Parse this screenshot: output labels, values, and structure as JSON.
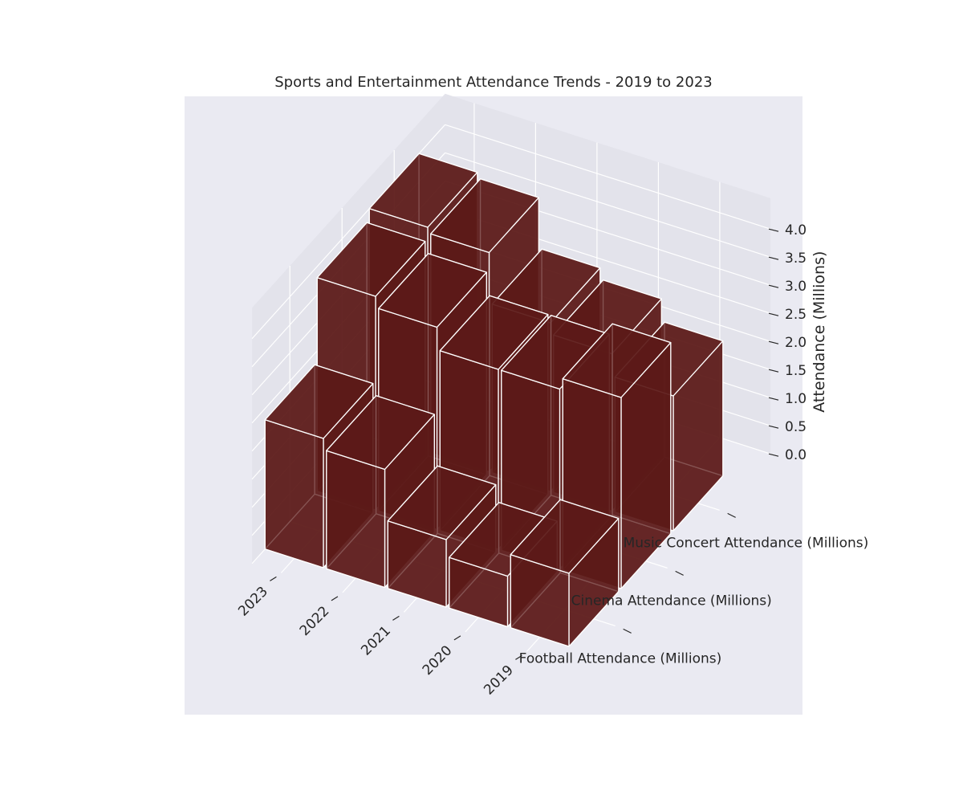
{
  "chart_data": {
    "type": "bar3d",
    "title": "Sports and Entertainment Attendance Trends - 2019 to 2023",
    "xlabel": "",
    "ylabel": "",
    "zlabel": "Attendance (Millions)",
    "categories": [
      "2019",
      "2020",
      "2021",
      "2022",
      "2023"
    ],
    "series": [
      {
        "name": "Football Attendance (Millions)",
        "values": [
          1.3,
          0.9,
          1.2,
          2.1,
          2.3
        ]
      },
      {
        "name": "Cinema Attendance (Millions)",
        "values": [
          3.4,
          3.2,
          3.2,
          3.6,
          3.8
        ]
      },
      {
        "name": "Music Concert Attendance (Millions)",
        "values": [
          2.4,
          2.8,
          3.0,
          3.9,
          4.0
        ]
      }
    ],
    "zlim": [
      0,
      4.0
    ],
    "z_ticks": [
      "0.0",
      "0.5",
      "1.0",
      "1.5",
      "2.0",
      "2.5",
      "3.0",
      "3.5",
      "4.0"
    ],
    "grid": true,
    "colors": {
      "bar_face": "#5c1a18",
      "bar_edge": "#ffffff",
      "pane": "#eaeaf2",
      "pane_side": "#e3e3eb",
      "grid": "#ffffff"
    }
  }
}
